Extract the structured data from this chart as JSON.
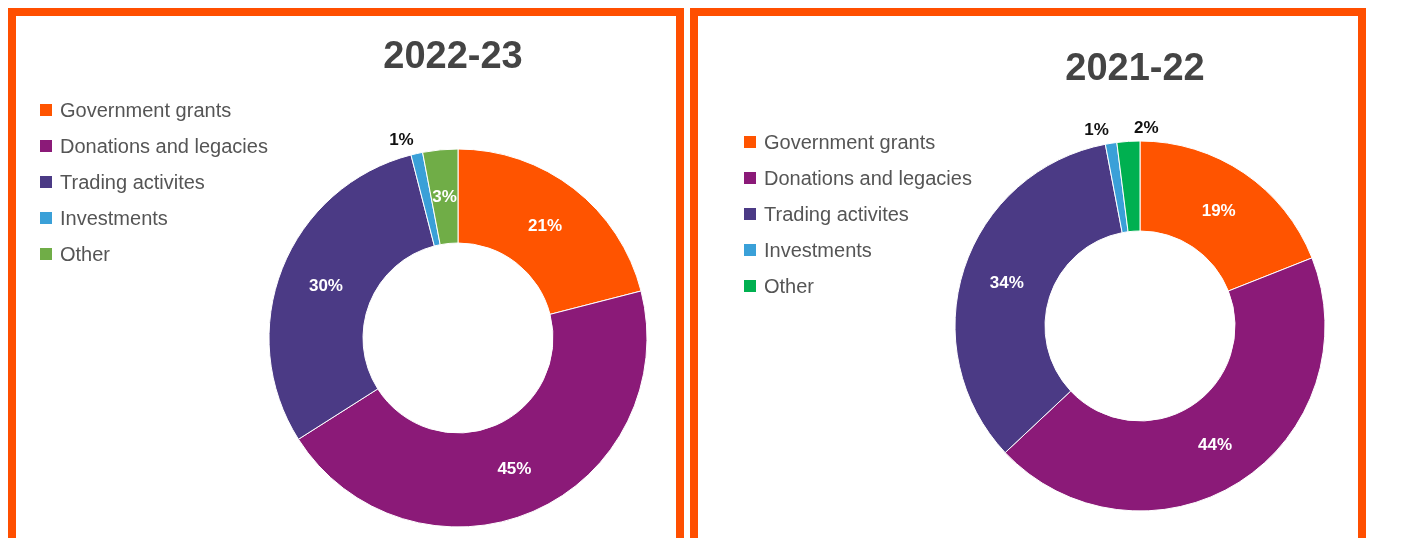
{
  "chart_data": [
    {
      "type": "donut",
      "title": "2022-23",
      "categories": [
        "Government grants",
        "Donations and legacies",
        "Trading activites",
        "Investments",
        "Other"
      ],
      "values": [
        21,
        45,
        30,
        1,
        3
      ],
      "colors": [
        "#ff5400",
        "#8b1a78",
        "#4b3a85",
        "#3aa0d8",
        "#70ad47"
      ],
      "value_labels": [
        "21%",
        "45%",
        "30%",
        "1%",
        "3%"
      ],
      "legend": "top left"
    },
    {
      "type": "donut",
      "title": "2021-22",
      "categories": [
        "Government grants",
        "Donations and legacies",
        "Trading activites",
        "Investments",
        "Other"
      ],
      "values": [
        19,
        44,
        34,
        1,
        2
      ],
      "colors": [
        "#ff5400",
        "#8b1a78",
        "#4b3a85",
        "#3aa0d8",
        "#00b050"
      ],
      "value_labels": [
        "19%",
        "44%",
        "34%",
        "1%",
        "2%"
      ],
      "legend": "top left"
    }
  ]
}
